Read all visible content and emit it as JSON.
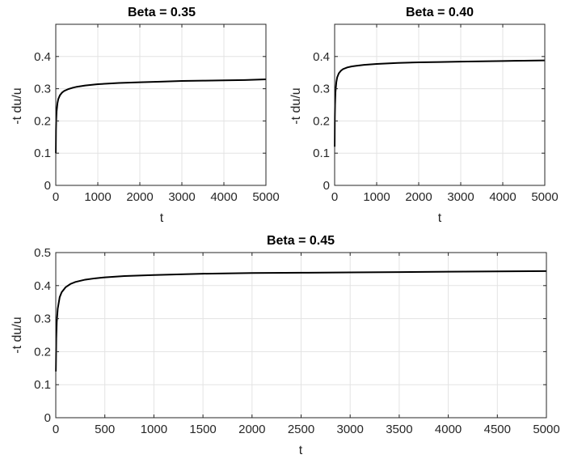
{
  "chart_data": [
    {
      "type": "line",
      "title": "Beta = 0.35",
      "xlabel": "t",
      "ylabel": "-t du/u",
      "xlim": [
        0,
        5000
      ],
      "ylim": [
        0,
        0.5
      ],
      "xticks": [
        0,
        1000,
        2000,
        3000,
        4000,
        5000
      ],
      "xtick_labels": [
        "0",
        "1000",
        "2000",
        "3000",
        "4000",
        "5000"
      ],
      "yticks": [
        0,
        0.1,
        0.2,
        0.3,
        0.4
      ],
      "ytick_labels": [
        "0",
        "0.1",
        "0.2",
        "0.3",
        "0.4"
      ],
      "grid": true,
      "series": [
        {
          "color": "#000000",
          "x": [
            1,
            5,
            10,
            20,
            40,
            60,
            100,
            150,
            200,
            300,
            400,
            500,
            700,
            1000,
            1500,
            2000,
            2500,
            3000,
            3500,
            4000,
            4500,
            5000
          ],
          "y": [
            0.1,
            0.17,
            0.2,
            0.23,
            0.255,
            0.268,
            0.28,
            0.288,
            0.293,
            0.299,
            0.303,
            0.306,
            0.31,
            0.314,
            0.318,
            0.32,
            0.322,
            0.324,
            0.325,
            0.326,
            0.327,
            0.329
          ]
        }
      ]
    },
    {
      "type": "line",
      "title": "Beta = 0.40",
      "xlabel": "t",
      "ylabel": "-t du/u",
      "xlim": [
        0,
        5000
      ],
      "ylim": [
        0,
        0.5
      ],
      "xticks": [
        0,
        1000,
        2000,
        3000,
        4000,
        5000
      ],
      "xtick_labels": [
        "0",
        "1000",
        "2000",
        "3000",
        "4000",
        "5000"
      ],
      "yticks": [
        0,
        0.1,
        0.2,
        0.3,
        0.4
      ],
      "ytick_labels": [
        "0",
        "0.1",
        "0.2",
        "0.3",
        "0.4"
      ],
      "grid": true,
      "series": [
        {
          "color": "#000000",
          "x": [
            1,
            5,
            10,
            20,
            40,
            60,
            100,
            150,
            200,
            300,
            400,
            500,
            700,
            1000,
            1500,
            2000,
            2500,
            3000,
            3500,
            4000,
            4500,
            5000
          ],
          "y": [
            0.12,
            0.21,
            0.25,
            0.29,
            0.32,
            0.335,
            0.348,
            0.356,
            0.361,
            0.366,
            0.369,
            0.371,
            0.374,
            0.377,
            0.38,
            0.382,
            0.383,
            0.384,
            0.385,
            0.386,
            0.387,
            0.388
          ]
        }
      ]
    },
    {
      "type": "line",
      "title": "Beta = 0.45",
      "xlabel": "t",
      "ylabel": "-t du/u",
      "xlim": [
        0,
        5000
      ],
      "ylim": [
        0,
        0.5
      ],
      "xticks": [
        0,
        500,
        1000,
        1500,
        2000,
        2500,
        3000,
        3500,
        4000,
        4500,
        5000
      ],
      "xtick_labels": [
        "0",
        "500",
        "1000",
        "1500",
        "2000",
        "2500",
        "3000",
        "3500",
        "4000",
        "4500",
        "5000"
      ],
      "yticks": [
        0,
        0.1,
        0.2,
        0.3,
        0.4,
        0.5
      ],
      "ytick_labels": [
        "0",
        "0.1",
        "0.2",
        "0.3",
        "0.4",
        "0.5"
      ],
      "grid": true,
      "series": [
        {
          "color": "#000000",
          "x": [
            1,
            5,
            10,
            20,
            40,
            60,
            100,
            150,
            200,
            300,
            400,
            500,
            700,
            1000,
            1500,
            2000,
            2500,
            3000,
            3500,
            4000,
            4500,
            5000
          ],
          "y": [
            0.14,
            0.24,
            0.29,
            0.33,
            0.365,
            0.38,
            0.395,
            0.405,
            0.411,
            0.418,
            0.422,
            0.425,
            0.429,
            0.432,
            0.436,
            0.438,
            0.439,
            0.44,
            0.441,
            0.442,
            0.443,
            0.444
          ]
        }
      ]
    }
  ]
}
